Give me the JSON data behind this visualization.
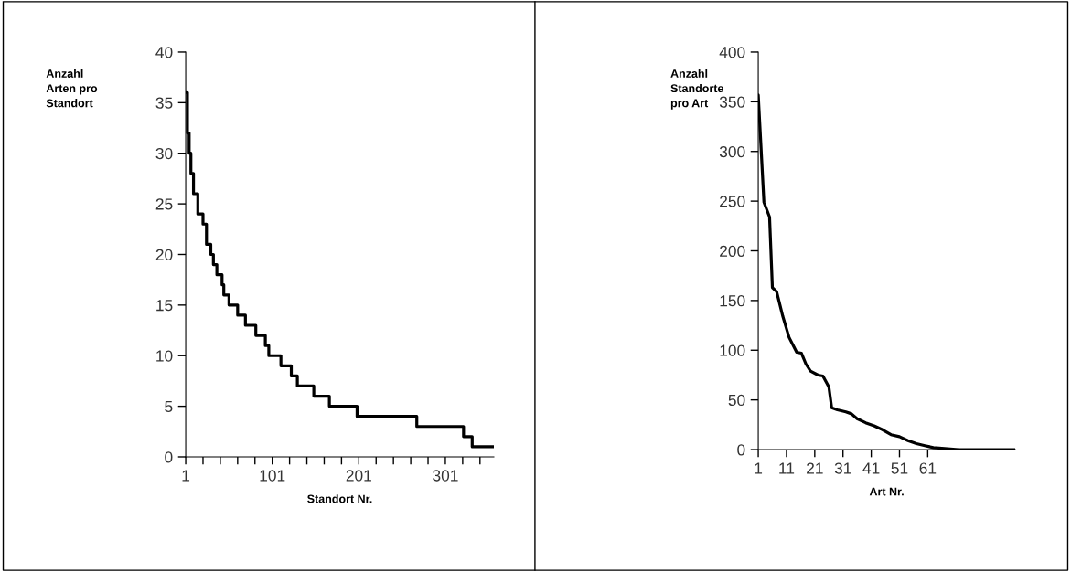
{
  "chart_data": [
    {
      "type": "step",
      "ylabel": "Anzahl\nArten pro\nStandort",
      "xlabel": "Standort Nr.",
      "x": [
        1,
        3,
        5,
        7,
        10,
        15,
        21,
        25,
        30,
        33,
        37,
        43,
        45,
        51,
        61,
        70,
        82,
        93,
        97,
        111,
        123,
        130,
        149,
        167,
        199,
        268,
        322,
        332,
        357
      ],
      "series": [
        {
          "color": "#000000",
          "values": [
            36,
            32,
            30,
            28,
            26,
            24,
            23,
            21,
            20,
            19,
            18,
            17,
            16,
            15,
            14,
            13,
            12,
            11,
            10,
            9,
            8,
            7,
            6,
            5,
            4,
            3,
            2,
            1,
            1
          ]
        }
      ],
      "xlim": [
        1,
        357
      ],
      "xticks": [
        1,
        {
          "value": 21,
          "label": null
        },
        {
          "value": 41,
          "label": null
        },
        {
          "value": 61,
          "label": null
        },
        {
          "value": 81,
          "label": null
        },
        101,
        {
          "value": 121,
          "label": null
        },
        {
          "value": 141,
          "label": null
        },
        {
          "value": 161,
          "label": null
        },
        {
          "value": 181,
          "label": null
        },
        201,
        {
          "value": 221,
          "label": null
        },
        {
          "value": 241,
          "label": null
        },
        {
          "value": 261,
          "label": null
        },
        {
          "value": 281,
          "label": null
        },
        301,
        {
          "value": 321,
          "label": null
        },
        {
          "value": 341,
          "label": null
        }
      ],
      "ylim": [
        0,
        40
      ],
      "yticks": [
        0,
        5,
        10,
        15,
        20,
        25,
        30,
        35,
        40
      ],
      "grid": false,
      "legend": false
    },
    {
      "type": "line",
      "ylabel": "Anzahl\nStandorte\npro Art",
      "xlabel": "Art Nr.",
      "x": [
        1,
        3,
        5,
        6,
        7.5,
        9.7,
        11.9,
        14.6,
        16.3,
        17.9,
        19.5,
        22.2,
        23.9,
        26,
        27,
        29,
        32,
        34,
        36,
        39,
        42,
        45,
        48,
        51,
        54,
        57,
        60,
        63,
        67,
        72,
        80,
        92
      ],
      "series": [
        {
          "color": "#000000",
          "values": [
            357,
            249,
            234,
            163,
            159,
            134,
            113,
            98,
            97,
            86,
            79,
            75,
            74,
            63,
            42,
            40,
            38,
            36,
            31,
            27,
            24,
            20,
            15,
            13,
            9,
            6,
            4,
            2,
            1,
            0,
            0,
            0
          ]
        }
      ],
      "xlim": [
        1,
        92
      ],
      "xticks": [
        1,
        11,
        21,
        31,
        41,
        51,
        61
      ],
      "ylim": [
        0,
        400
      ],
      "yticks": [
        0,
        50,
        100,
        150,
        200,
        250,
        300,
        350,
        400
      ],
      "grid": false,
      "legend": false
    }
  ]
}
